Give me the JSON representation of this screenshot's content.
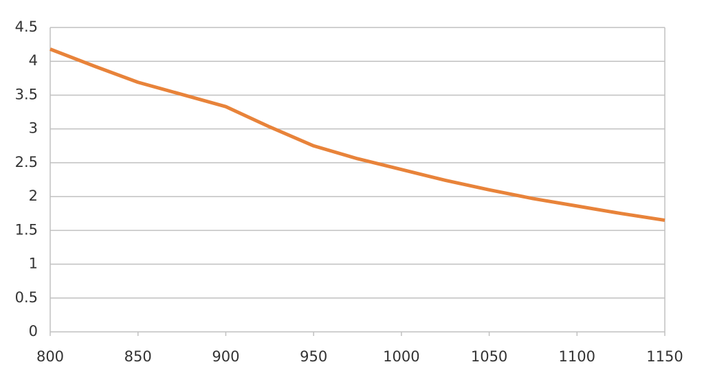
{
  "chart_data": {
    "type": "line",
    "x": [
      800,
      825,
      850,
      875,
      900,
      925,
      950,
      975,
      1000,
      1025,
      1050,
      1075,
      1100,
      1125,
      1150
    ],
    "series": [
      {
        "color": "#e8833a",
        "values": [
          4.18,
          3.93,
          3.69,
          3.51,
          3.33,
          3.03,
          2.75,
          2.56,
          2.4,
          2.24,
          2.1,
          1.97,
          1.86,
          1.75,
          1.65
        ]
      }
    ],
    "xlim": [
      800,
      1150
    ],
    "xticks": [
      800,
      850,
      900,
      950,
      1000,
      1050,
      1100,
      1150
    ],
    "ylim": [
      0,
      4.5
    ],
    "yticks": [
      0,
      0.5,
      1,
      1.5,
      2,
      2.5,
      3,
      3.5,
      4,
      4.5
    ],
    "grid": true
  }
}
